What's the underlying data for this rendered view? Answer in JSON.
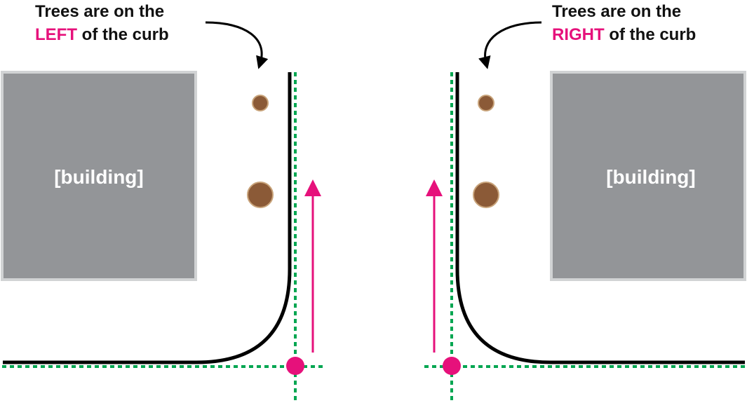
{
  "colors": {
    "building_fill": "#939598",
    "building_border": "#d1d3d4",
    "curb": "#000000",
    "guide_line": "#00a651",
    "accent": "#e6117b",
    "tree_fill": "#8b5a37",
    "tree_border": "#c8a37a"
  },
  "left_panel": {
    "caption_line1": "Trees are on the",
    "caption_word": "LEFT",
    "caption_rest": " of the curb",
    "building_label": "[building]"
  },
  "right_panel": {
    "caption_line1": "Trees are on the",
    "caption_word": "RIGHT",
    "caption_rest": " of the curb",
    "building_label": "[building]"
  }
}
